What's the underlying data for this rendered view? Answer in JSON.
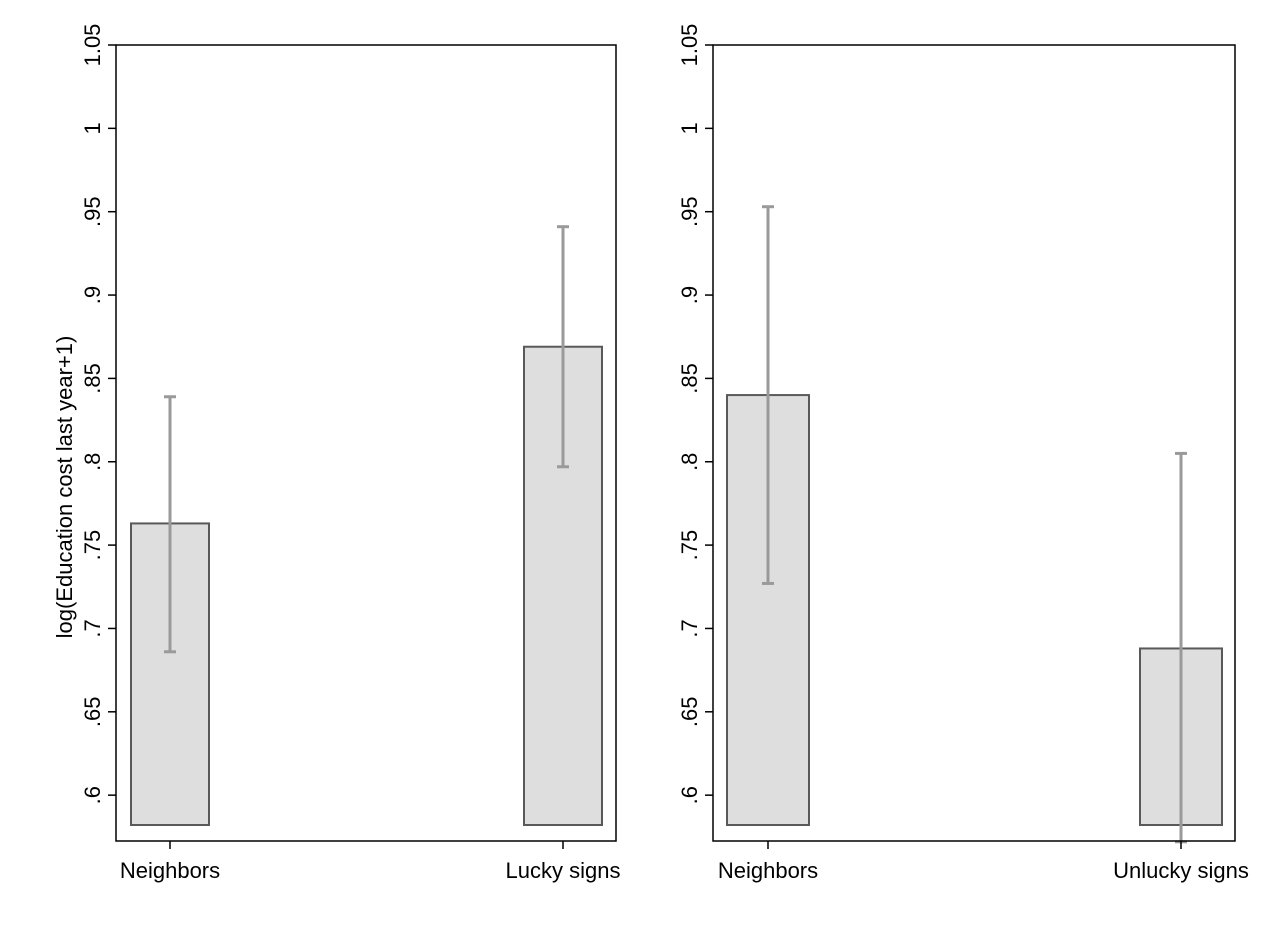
{
  "colors": {
    "bar_fill": "#dedede",
    "bar_stroke": "#595959",
    "errorbar": "#9a9a9a",
    "axis": "#000000"
  },
  "chart_data": [
    {
      "type": "bar",
      "title": "",
      "xlabel": "",
      "ylabel": "log(Education cost last year+1)",
      "ylim": [
        0.5725,
        1.05
      ],
      "bar_base": 0.5725,
      "ytick_values": [
        0.6,
        0.65,
        0.7,
        0.75,
        0.8,
        0.85,
        0.9,
        0.95,
        1,
        1.05
      ],
      "ytick_labels": [
        ".6",
        ".65",
        ".7",
        ".75",
        ".8",
        ".85",
        ".9",
        ".95",
        "1",
        "1.05"
      ],
      "grid": false,
      "categories": [
        "Neighbors",
        "Lucky signs"
      ],
      "values": [
        0.763,
        0.869
      ],
      "ci_low": [
        0.686,
        0.797
      ],
      "ci_high": [
        0.839,
        0.941
      ]
    },
    {
      "type": "bar",
      "title": "",
      "xlabel": "",
      "ylabel": "",
      "ylim": [
        0.5725,
        1.05
      ],
      "bar_base": 0.5725,
      "ytick_values": [
        0.6,
        0.65,
        0.7,
        0.75,
        0.8,
        0.85,
        0.9,
        0.95,
        1,
        1.05
      ],
      "ytick_labels": [
        ".6",
        ".65",
        ".7",
        ".75",
        ".8",
        ".85",
        ".9",
        ".95",
        "1",
        "1.05"
      ],
      "grid": false,
      "categories": [
        "Neighbors",
        "Unlucky signs"
      ],
      "values": [
        0.84,
        0.688
      ],
      "ci_low": [
        0.727,
        0.572
      ],
      "ci_high": [
        0.953,
        0.805
      ]
    }
  ]
}
